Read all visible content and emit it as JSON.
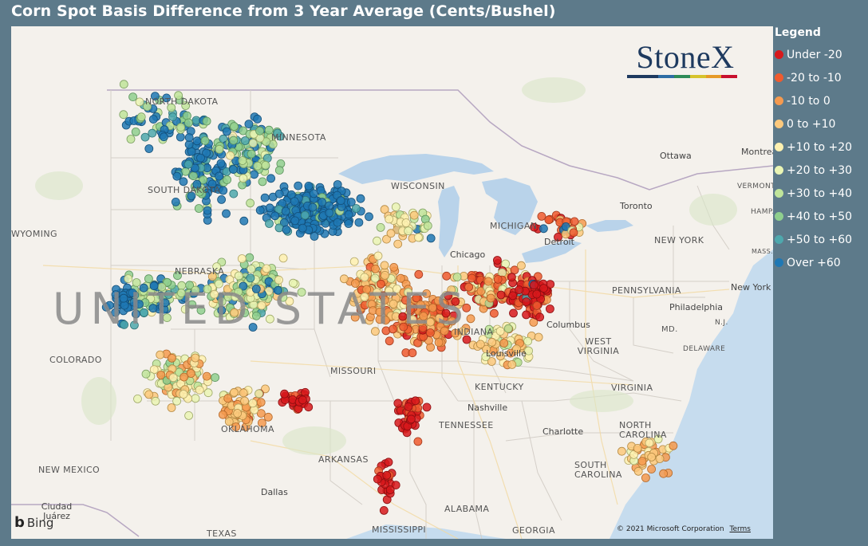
{
  "title": "Corn Spot Basis Difference from 3 Year Average (Cents/Bushel)",
  "legend": {
    "title": "Legend",
    "items": [
      {
        "label": "Under -20",
        "color": "#d7191c"
      },
      {
        "label": "-20 to -10",
        "color": "#ef5b2f"
      },
      {
        "label": "-10 to 0",
        "color": "#f59a4f"
      },
      {
        "label": "0 to +10",
        "color": "#fcc97d"
      },
      {
        "label": "+10 to +20",
        "color": "#fef1b0"
      },
      {
        "label": "+20 to +30",
        "color": "#eaf5b4"
      },
      {
        "label": "+30 to +40",
        "color": "#bfe49a"
      },
      {
        "label": "+40 to +50",
        "color": "#8fcf8e"
      },
      {
        "label": "+50 to +60",
        "color": "#4ea8ad"
      },
      {
        "label": "Over +60",
        "color": "#1f78b4"
      }
    ]
  },
  "logo": {
    "text": "StoneX",
    "bar_colors": [
      "#1e3a5f",
      "#1e3a5f",
      "#2e6da4",
      "#2e8b57",
      "#d6c32c",
      "#e69a28",
      "#c8102e"
    ]
  },
  "map": {
    "country_label": "UNITED STATES",
    "state_labels": [
      "NORTH DAKOTA",
      "SOUTH DAKOTA",
      "MINNESOTA",
      "WYOMING",
      "NEBRASKA",
      "COLORADO",
      "WISCONSIN",
      "MICHIGAN",
      "INDIANA",
      "MISSOURI",
      "KENTUCKY",
      "TENNESSEE",
      "OKLAHOMA",
      "ARKANSAS",
      "NEW MEXICO",
      "TEXAS",
      "MISSISSIPPI",
      "ALABAMA",
      "GEORGIA",
      "SOUTH CAROLINA",
      "NORTH CAROLINA",
      "VIRGINIA",
      "WEST VIRGINIA",
      "PENNSYLVANIA",
      "NEW YORK",
      "DELAWARE",
      "MD.",
      "N.J.",
      "MASS.",
      "VERMONT",
      "HAMP."
    ],
    "city_labels": [
      "Chicago",
      "Detroit",
      "Toronto",
      "Ottawa",
      "Montreal",
      "Columbus",
      "Philadelphia",
      "New York",
      "Louisville",
      "Nashville",
      "Charlotte",
      "Dallas",
      "Ciudad Juárez"
    ],
    "attribution": {
      "bing": "Bing",
      "copyright": "© 2021 Microsoft Corporation",
      "terms": "Terms"
    }
  }
}
